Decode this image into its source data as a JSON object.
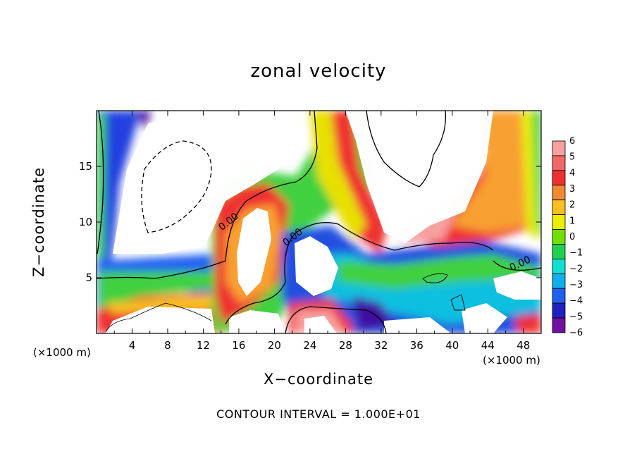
{
  "chart_data": {
    "type": "heatmap",
    "title": "zonal velocity",
    "xlabel": "X−coordinate",
    "ylabel": "Z−coordinate",
    "x_unit": "(×1000 m)",
    "y_unit": "(×1000 m)",
    "xlim": [
      0,
      50
    ],
    "ylim": [
      0,
      20
    ],
    "x_ticks": [
      4,
      8,
      12,
      16,
      20,
      24,
      28,
      32,
      36,
      40,
      44,
      48
    ],
    "y_ticks": [
      5,
      10,
      15
    ],
    "colorbar": {
      "values": [
        6,
        5,
        4,
        3,
        2,
        1,
        0,
        -1,
        -2,
        -3,
        -4,
        -5,
        -6
      ],
      "labels": [
        "6",
        "5",
        "4",
        "3",
        "2",
        "1",
        "0",
        "−1",
        "−2",
        "−3",
        "−4",
        "−5",
        "−6"
      ],
      "colors": [
        "#f8a0a0",
        "#f06868",
        "#f03030",
        "#f08a30",
        "#f8c020",
        "#e8f000",
        "#70e000",
        "#20d050",
        "#10e0d0",
        "#10b0f0",
        "#2060f0",
        "#2020c0",
        "#7010a0"
      ]
    },
    "contour_labels": [
      "0.00",
      "0.00",
      "0.00"
    ],
    "contour_interval": "CONTOUR INTERVAL = 1.000E+01"
  }
}
